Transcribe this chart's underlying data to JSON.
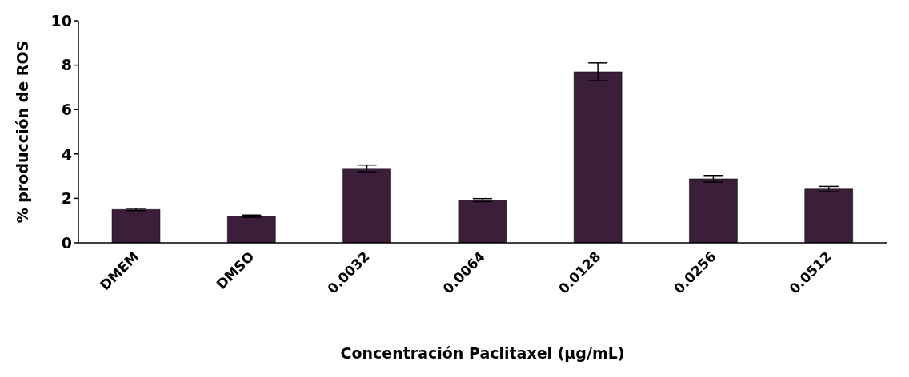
{
  "chart_data": {
    "type": "bar",
    "xlabel": "Concentración Paclitaxel (µg/mL)",
    "ylabel": "% producción de ROS",
    "categories": [
      "DMEM",
      "DMSO",
      "0.0032",
      "0.0064",
      "0.0128",
      "0.0256",
      "0.0512"
    ],
    "values": [
      1.5,
      1.2,
      3.35,
      1.92,
      7.7,
      2.88,
      2.42
    ],
    "errors": [
      0.05,
      0.05,
      0.15,
      0.07,
      0.4,
      0.15,
      0.12
    ],
    "color": "#3b1f3a",
    "ylim": [
      0,
      10
    ],
    "yticks": [
      0,
      2,
      4,
      6,
      8,
      10
    ],
    "grid": false,
    "legend": false
  }
}
